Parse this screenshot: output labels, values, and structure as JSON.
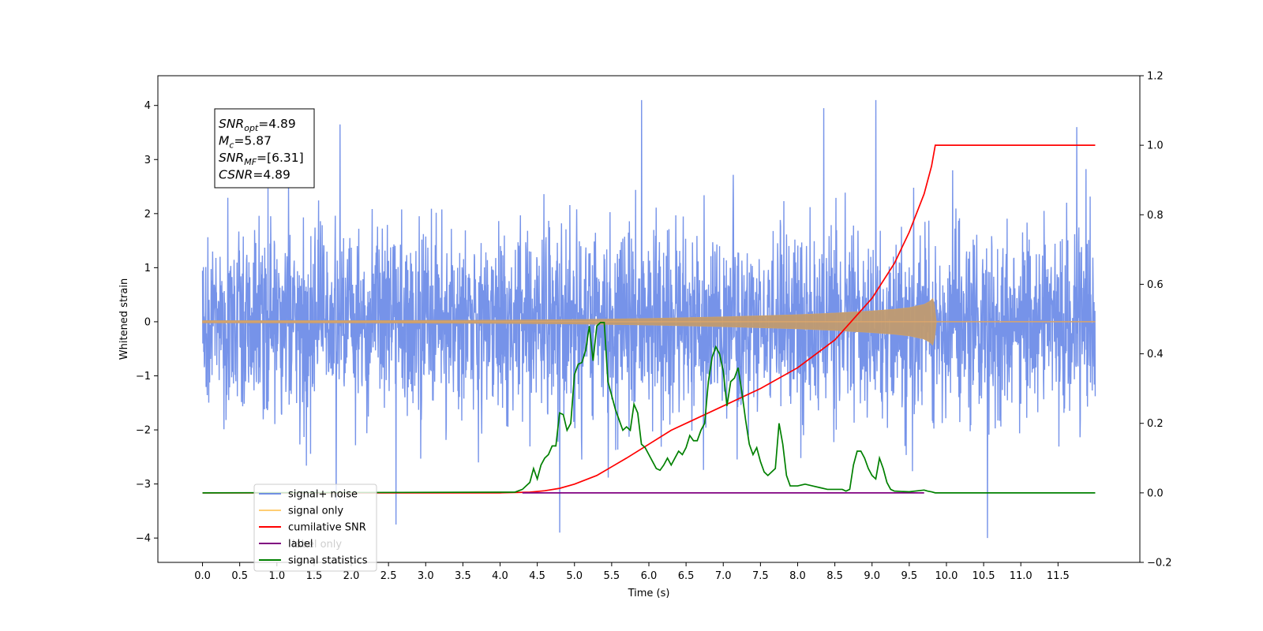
{
  "chart_data": {
    "type": "line",
    "xlabel": "Time (s)",
    "ylabel": "Whitened strain",
    "xlim": [
      -0.6,
      12.6
    ],
    "ylim": [
      -4.45,
      4.55
    ],
    "y2lim": [
      -0.2,
      1.2
    ],
    "xticks": [
      0.0,
      0.5,
      1.0,
      1.5,
      2.0,
      2.5,
      3.0,
      3.5,
      4.0,
      4.5,
      5.0,
      5.5,
      6.0,
      6.5,
      7.0,
      7.5,
      8.0,
      8.5,
      9.0,
      9.5,
      10.0,
      10.5,
      11.0,
      11.5
    ],
    "xtick_labels": [
      "0.0",
      "0.5",
      "1.0",
      "1.5",
      "2.0",
      "2.5",
      "3.0",
      "3.5",
      "4.0",
      "4.5",
      "5.0",
      "5.5",
      "6.0",
      "6.5",
      "7.0",
      "7.5",
      "8.0",
      "8.5",
      "9.0",
      "9.5",
      "10.0",
      "10.5",
      "11.0",
      "11.5"
    ],
    "yticks": [
      4,
      3,
      2,
      1,
      0,
      -1,
      -2,
      -3,
      -4
    ],
    "ytick_labels": [
      "4",
      "3",
      "2",
      "1",
      "0",
      "−1",
      "−2",
      "−3",
      "−4"
    ],
    "y2ticks": [
      1.2,
      1.0,
      0.8,
      0.6,
      0.4,
      0.2,
      0.0,
      -0.2
    ],
    "y2tick_labels": [
      "1.2",
      "1.0",
      "0.8",
      "0.6",
      "0.4",
      "0.2",
      "0.0",
      "−0.2"
    ],
    "grid": false,
    "legend_position": "lower-left",
    "legend": [
      {
        "label": "signal+ noise",
        "color": "#4169e1"
      },
      {
        "label": "signal only",
        "color": "#ffa500"
      },
      {
        "label": "cumilative SNR",
        "color": "#ff0000"
      },
      {
        "label": "label",
        "color": "#800080"
      },
      {
        "label": "signal statistics",
        "color": "#008000"
      }
    ],
    "hidden_legend_text": "label only",
    "annotation": [
      {
        "label": "SNR",
        "sub": "opt",
        "value": "=4.89"
      },
      {
        "label": "M",
        "sub": "c",
        "value": "=5.87"
      },
      {
        "label": "SNR",
        "sub": "MF",
        "value": "=[6.31]"
      },
      {
        "label": "CSNR",
        "sub": "",
        "value": "=4.89"
      }
    ],
    "series": [
      {
        "name": "signal+ noise",
        "color": "#4169e1",
        "axis": "left",
        "style": "dense gaussian noise, std approx 0.9, range approx -4.0 to 4.1",
        "x_range": [
          0.0,
          12.0
        ],
        "outlier_peaks": [
          [
            5.9,
            4.1
          ],
          [
            9.05,
            4.1
          ],
          [
            8.35,
            3.95
          ],
          [
            4.8,
            -3.9
          ],
          [
            10.55,
            -4.0
          ],
          [
            2.6,
            -3.75
          ],
          [
            1.85,
            3.65
          ],
          [
            11.75,
            3.6
          ]
        ]
      },
      {
        "name": "signal only",
        "color": "#ffa500",
        "axis": "left",
        "envelope_x": [
          0.0,
          2.0,
          4.0,
          5.0,
          6.0,
          7.0,
          7.5,
          8.0,
          8.5,
          9.0,
          9.3,
          9.5,
          9.7,
          9.78,
          9.83,
          9.86,
          12.0
        ],
        "envelope_y": [
          0.02,
          0.02,
          0.03,
          0.04,
          0.06,
          0.09,
          0.11,
          0.13,
          0.16,
          0.2,
          0.23,
          0.26,
          0.32,
          0.38,
          0.45,
          0.0,
          0.0
        ]
      },
      {
        "name": "cumilative SNR",
        "color": "#ff0000",
        "axis": "right",
        "x": [
          0.0,
          4.0,
          4.4,
          4.6,
          4.8,
          5.0,
          5.3,
          5.5,
          5.7,
          6.0,
          6.3,
          6.6,
          7.0,
          7.5,
          8.0,
          8.5,
          9.0,
          9.3,
          9.5,
          9.7,
          9.8,
          9.85,
          12.0
        ],
        "y": [
          0.0,
          0.0,
          0.002,
          0.006,
          0.013,
          0.025,
          0.05,
          0.075,
          0.1,
          0.14,
          0.18,
          0.21,
          0.25,
          0.3,
          0.36,
          0.44,
          0.56,
          0.66,
          0.75,
          0.86,
          0.94,
          1.0,
          1.0
        ]
      },
      {
        "name": "label",
        "color": "#800080",
        "axis": "right",
        "x": [
          4.3,
          9.7
        ],
        "y": [
          0.0,
          0.0
        ]
      },
      {
        "name": "signal statistics",
        "color": "#008000",
        "axis": "right",
        "x": [
          0.0,
          4.2,
          4.3,
          4.35,
          4.4,
          4.45,
          4.5,
          4.55,
          4.6,
          4.65,
          4.7,
          4.75,
          4.8,
          4.85,
          4.9,
          4.95,
          5.0,
          5.05,
          5.1,
          5.15,
          5.2,
          5.25,
          5.3,
          5.35,
          5.4,
          5.45,
          5.5,
          5.55,
          5.6,
          5.65,
          5.7,
          5.75,
          5.8,
          5.85,
          5.9,
          5.95,
          6.0,
          6.05,
          6.1,
          6.15,
          6.2,
          6.25,
          6.3,
          6.35,
          6.4,
          6.45,
          6.5,
          6.55,
          6.6,
          6.65,
          6.7,
          6.75,
          6.8,
          6.85,
          6.9,
          6.95,
          7.0,
          7.05,
          7.1,
          7.15,
          7.2,
          7.25,
          7.3,
          7.35,
          7.4,
          7.45,
          7.5,
          7.55,
          7.6,
          7.65,
          7.7,
          7.75,
          7.8,
          7.85,
          7.9,
          7.95,
          8.0,
          8.1,
          8.2,
          8.3,
          8.4,
          8.5,
          8.6,
          8.65,
          8.7,
          8.75,
          8.8,
          8.85,
          8.9,
          8.95,
          9.0,
          9.05,
          9.1,
          9.15,
          9.2,
          9.25,
          9.3,
          9.5,
          9.7,
          9.75,
          9.8,
          9.85,
          10.0,
          12.0
        ],
        "y": [
          0.0,
          0.002,
          0.01,
          0.02,
          0.03,
          0.07,
          0.04,
          0.08,
          0.1,
          0.11,
          0.135,
          0.135,
          0.23,
          0.225,
          0.18,
          0.2,
          0.34,
          0.37,
          0.375,
          0.41,
          0.48,
          0.38,
          0.48,
          0.49,
          0.49,
          0.32,
          0.28,
          0.24,
          0.21,
          0.18,
          0.19,
          0.18,
          0.255,
          0.23,
          0.14,
          0.13,
          0.11,
          0.09,
          0.07,
          0.065,
          0.08,
          0.1,
          0.08,
          0.1,
          0.12,
          0.11,
          0.13,
          0.165,
          0.15,
          0.15,
          0.18,
          0.2,
          0.32,
          0.39,
          0.42,
          0.4,
          0.35,
          0.25,
          0.32,
          0.33,
          0.36,
          0.29,
          0.21,
          0.14,
          0.11,
          0.13,
          0.09,
          0.06,
          0.05,
          0.06,
          0.07,
          0.2,
          0.14,
          0.05,
          0.02,
          0.02,
          0.02,
          0.025,
          0.02,
          0.015,
          0.01,
          0.01,
          0.01,
          0.005,
          0.01,
          0.08,
          0.12,
          0.12,
          0.1,
          0.07,
          0.05,
          0.04,
          0.1,
          0.07,
          0.03,
          0.01,
          0.005,
          0.003,
          0.008,
          0.005,
          0.003,
          0.0,
          0.0,
          0.0
        ]
      }
    ]
  }
}
